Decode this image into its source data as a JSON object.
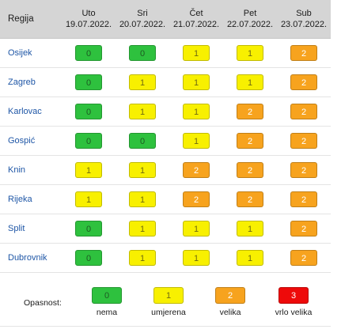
{
  "table": {
    "header_region": "Regija",
    "days": [
      {
        "name": "Uto",
        "date": "19.07.2022."
      },
      {
        "name": "Sri",
        "date": "20.07.2022."
      },
      {
        "name": "Čet",
        "date": "21.07.2022."
      },
      {
        "name": "Pet",
        "date": "22.07.2022."
      },
      {
        "name": "Sub",
        "date": "23.07.2022."
      }
    ],
    "rows": [
      {
        "region": "Osijek",
        "levels": [
          "0",
          "0",
          "1",
          "1",
          "2"
        ]
      },
      {
        "region": "Zagreb",
        "levels": [
          "0",
          "1",
          "1",
          "1",
          "2"
        ]
      },
      {
        "region": "Karlovac",
        "levels": [
          "0",
          "1",
          "1",
          "2",
          "2"
        ]
      },
      {
        "region": "Gospić",
        "levels": [
          "0",
          "0",
          "1",
          "2",
          "2"
        ]
      },
      {
        "region": "Knin",
        "levels": [
          "1",
          "1",
          "2",
          "2",
          "2"
        ]
      },
      {
        "region": "Rijeka",
        "levels": [
          "1",
          "1",
          "2",
          "2",
          "2"
        ]
      },
      {
        "region": "Split",
        "levels": [
          "0",
          "1",
          "1",
          "1",
          "2"
        ]
      },
      {
        "region": "Dubrovnik",
        "levels": [
          "0",
          "1",
          "1",
          "1",
          "2"
        ]
      }
    ]
  },
  "legend": {
    "title": "Opasnost:",
    "items": [
      {
        "level": "0",
        "label": "nema"
      },
      {
        "level": "1",
        "label": "umjerena"
      },
      {
        "level": "2",
        "label": "velika"
      },
      {
        "level": "3",
        "label": "vrlo velika"
      }
    ]
  },
  "colors": {
    "level_0": "#2ec13e",
    "level_1": "#f8f000",
    "level_2": "#f7a31e",
    "level_3": "#ee0a0a",
    "region_text": "#1e56a6",
    "header_bg": "#d5d5d5"
  }
}
